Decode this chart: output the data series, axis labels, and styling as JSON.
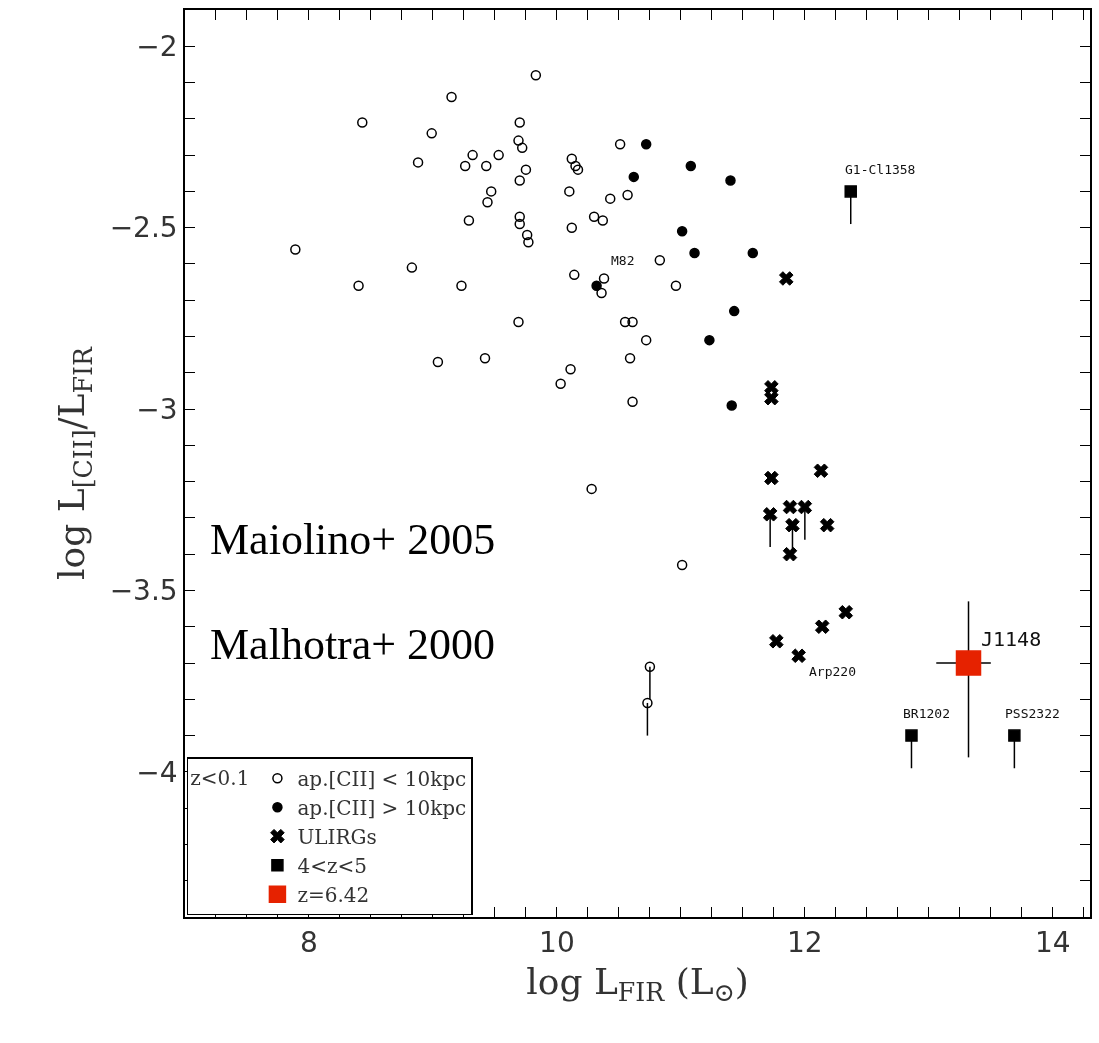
{
  "chart_data": {
    "type": "scatter",
    "xlabel": "log L$_{FIR}$ (L$_{⊙}$)",
    "ylabel": "log L$_{[CII]}$/L$_{FIR}$",
    "legend_title": "z<0.1",
    "legend": "bottom left",
    "grid": false,
    "xlim": [
      7,
      14.3
    ],
    "ylim": [
      -4.4,
      -1.9
    ],
    "xticks": [
      {
        "value": 7.25,
        "label": null
      },
      {
        "value": 7.5,
        "label": null
      },
      {
        "value": 7.75,
        "label": null
      },
      8,
      {
        "value": 8.25,
        "label": null
      },
      {
        "value": 8.5,
        "label": null
      },
      {
        "value": 8.75,
        "label": null
      },
      {
        "value": 9,
        "label": null
      },
      {
        "value": 9.25,
        "label": null
      },
      {
        "value": 9.5,
        "label": null
      },
      {
        "value": 9.75,
        "label": null
      },
      10,
      {
        "value": 10.25,
        "label": null
      },
      {
        "value": 10.5,
        "label": null
      },
      {
        "value": 10.75,
        "label": null
      },
      {
        "value": 11,
        "label": null
      },
      {
        "value": 11.25,
        "label": null
      },
      {
        "value": 11.5,
        "label": null
      },
      {
        "value": 11.75,
        "label": null
      },
      12,
      {
        "value": 12.25,
        "label": null
      },
      {
        "value": 12.5,
        "label": null
      },
      {
        "value": 12.75,
        "label": null
      },
      {
        "value": 13,
        "label": null
      },
      {
        "value": 13.25,
        "label": null
      },
      {
        "value": 13.5,
        "label": null
      },
      {
        "value": 13.75,
        "label": null
      },
      14,
      {
        "value": 14.25,
        "label": null
      }
    ],
    "yticks": [
      -2,
      {
        "value": -2.1,
        "label": null
      },
      {
        "value": -2.2,
        "label": null
      },
      {
        "value": -2.3,
        "label": null
      },
      {
        "value": -2.4,
        "label": null
      },
      -2.5,
      {
        "value": -2.6,
        "label": null
      },
      {
        "value": -2.7,
        "label": null
      },
      {
        "value": -2.8,
        "label": null
      },
      {
        "value": -2.9,
        "label": null
      },
      -3,
      {
        "value": -3.1,
        "label": null
      },
      {
        "value": -3.2,
        "label": null
      },
      {
        "value": -3.3,
        "label": null
      },
      {
        "value": -3.4,
        "label": null
      },
      -3.5,
      {
        "value": -3.6,
        "label": null
      },
      {
        "value": -3.7,
        "label": null
      },
      {
        "value": -3.8,
        "label": null
      },
      {
        "value": -3.9,
        "label": null
      },
      -4,
      {
        "value": -4.1,
        "label": null
      },
      {
        "value": -4.2,
        "label": null
      },
      {
        "value": -4.3,
        "label": null
      }
    ],
    "series": [
      {
        "name": "ap.[CII] < 10kpc",
        "marker": "circle-open",
        "color": "#000000",
        "x": [
          7.89,
          8.43,
          8.4,
          8.83,
          8.88,
          8.99,
          9.04,
          9.15,
          9.23,
          9.26,
          9.32,
          9.29,
          9.43,
          9.53,
          9.47,
          9.44,
          9.42,
          9.83,
          9.7,
          9.69,
          9.72,
          9.75,
          9.7,
          9.7,
          9.7,
          9.76,
          9.77,
          9.69,
          10.12,
          10.15,
          10.17,
          10.1,
          10.12,
          10.14,
          10.11,
          10.03,
          10.3,
          10.37,
          10.43,
          10.57,
          10.51,
          10.38,
          10.36,
          10.83,
          10.96,
          10.55,
          10.61,
          10.72,
          10.59,
          10.61,
          10.28,
          11.01,
          10.75,
          10.73
        ],
        "values": [
          -2.56,
          -2.21,
          -2.66,
          -2.61,
          -2.32,
          -2.24,
          -2.87,
          -2.14,
          -2.66,
          -2.33,
          -2.3,
          -2.48,
          -2.33,
          -2.3,
          -2.4,
          -2.43,
          -2.86,
          -2.08,
          -2.21,
          -2.26,
          -2.28,
          -2.34,
          -2.37,
          -2.47,
          -2.49,
          -2.52,
          -2.54,
          -2.76,
          -2.31,
          -2.33,
          -2.34,
          -2.4,
          -2.5,
          -2.63,
          -2.89,
          -2.93,
          -2.47,
          -2.48,
          -2.42,
          -2.41,
          -2.27,
          -2.64,
          -2.68,
          -2.59,
          -2.66,
          -2.76,
          -2.76,
          -2.81,
          -2.86,
          -2.98,
          -3.22,
          -3.43,
          -3.71,
          -3.81
        ],
        "errors": [
          null,
          null,
          null,
          null,
          null,
          null,
          null,
          null,
          null,
          null,
          null,
          null,
          null,
          null,
          null,
          null,
          null,
          null,
          null,
          null,
          null,
          null,
          null,
          null,
          null,
          null,
          null,
          null,
          null,
          null,
          null,
          null,
          null,
          null,
          null,
          null,
          null,
          null,
          null,
          null,
          null,
          null,
          null,
          null,
          null,
          null,
          null,
          null,
          null,
          null,
          null,
          null,
          [
            -3.8,
            -3.71
          ],
          [
            -3.9,
            -3.81
          ]
        ]
      },
      {
        "name": "ap.[CII] > 10kpc",
        "marker": "circle",
        "color": "#000000",
        "x": [
          10.72,
          11.08,
          11.4,
          10.62,
          11.01,
          11.11,
          11.58,
          10.32,
          11.43,
          11.23,
          11.41
        ],
        "values": [
          -2.27,
          -2.33,
          -2.37,
          -2.36,
          -2.51,
          -2.57,
          -2.57,
          -2.66,
          -2.73,
          -2.81,
          -2.99
        ]
      },
      {
        "name": "ULIRGs",
        "marker": "cross",
        "color": "#000000",
        "x": [
          11.85,
          11.73,
          11.73,
          11.73,
          12.13,
          11.72,
          11.88,
          12.0,
          11.9,
          12.18,
          11.88,
          12.33,
          12.14,
          11.77,
          11.95
        ],
        "values": [
          -2.64,
          -2.94,
          -2.97,
          -3.19,
          -3.17,
          -3.29,
          -3.27,
          -3.27,
          -3.32,
          -3.32,
          -3.4,
          -3.56,
          -3.6,
          -3.64,
          -3.68
        ],
        "errors": [
          null,
          null,
          null,
          null,
          null,
          [
            -3.38,
            -3.29
          ],
          null,
          [
            -3.36,
            -3.27
          ],
          [
            -3.41,
            -3.32
          ],
          null,
          null,
          null,
          null,
          null,
          null
        ]
      },
      {
        "name": "4<z<5",
        "marker": "square",
        "color": "#000000",
        "x": [
          12.37,
          12.86,
          13.69
        ],
        "values": [
          -2.4,
          -3.9,
          -3.9
        ],
        "errors": [
          [
            -2.49,
            -2.4
          ],
          [
            -3.99,
            -3.9
          ],
          [
            -3.99,
            -3.9
          ]
        ]
      },
      {
        "name": "z=6.42",
        "marker": "square",
        "color": "#e62200",
        "x": [
          13.32
        ],
        "values": [
          -3.7
        ],
        "errors": [
          [
            -3.96,
            -3.53
          ]
        ],
        "xerrors": [
          [
            13.06,
            13.5
          ]
        ]
      }
    ],
    "annotations": [
      "Maiolino+ 2005",
      "Malhotra+ 2000",
      {
        "text": "M82",
        "x": 10.32,
        "y": -2.66
      },
      {
        "text": "G1-Cl1358",
        "x": 12.37,
        "y": -2.4
      },
      {
        "text": "J1148",
        "x": 13.32,
        "y": -3.7
      },
      {
        "text": "BR1202",
        "x": 12.86,
        "y": -3.9
      },
      {
        "text": "PSS2322",
        "x": 13.69,
        "y": -3.9
      },
      {
        "text": "Arp220",
        "x": 11.95,
        "y": -3.68
      }
    ]
  }
}
